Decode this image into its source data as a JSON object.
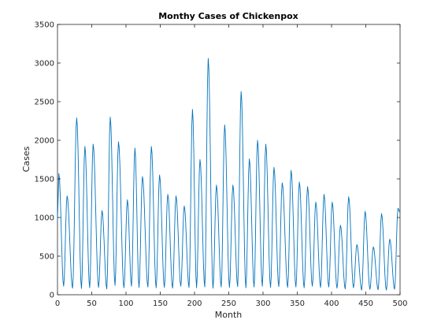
{
  "chart_data": {
    "type": "line",
    "title": "Monthy Cases of Chickenpox",
    "xlabel": "Month",
    "ylabel": "Cases",
    "xlim": [
      0,
      500
    ],
    "ylim": [
      0,
      3500
    ],
    "xticks": [
      0,
      50,
      100,
      150,
      200,
      250,
      300,
      350,
      400,
      450,
      500
    ],
    "yticks": [
      0,
      500,
      1000,
      1500,
      2000,
      2500,
      3000,
      3500
    ],
    "grid": false,
    "line_color": "#0072bd",
    "series": [
      {
        "name": "",
        "peak_months": [
          2,
          14,
          28,
          40,
          52,
          65,
          77,
          89,
          102,
          113,
          124,
          137,
          149,
          161,
          173,
          185,
          197,
          208,
          220,
          232,
          244,
          256,
          268,
          280,
          292,
          304,
          316,
          328,
          341,
          353,
          365,
          377,
          389,
          401,
          413,
          425,
          437,
          449,
          461,
          473,
          485,
          497
        ],
        "peak_values": [
          1570,
          1280,
          2290,
          1920,
          1950,
          1090,
          2300,
          1980,
          1230,
          1900,
          1530,
          1920,
          1550,
          1300,
          1280,
          1150,
          2400,
          1750,
          3060,
          1420,
          2200,
          1420,
          2630,
          1760,
          2000,
          1950,
          1650,
          1450,
          1610,
          1460,
          1400,
          1200,
          1300,
          1200,
          900,
          1270,
          650,
          1080,
          620,
          1050,
          720,
          1120
        ],
        "trough_values": [
          110,
          85,
          80,
          90,
          95,
          75,
          120,
          90,
          110,
          95,
          100,
          90,
          95,
          85,
          110,
          95,
          90,
          100,
          85,
          100,
          95,
          105,
          90,
          100,
          110,
          95,
          105,
          95,
          100,
          90,
          110,
          95,
          100,
          85,
          75,
          90,
          60,
          70,
          65,
          60,
          70,
          80
        ]
      }
    ]
  }
}
